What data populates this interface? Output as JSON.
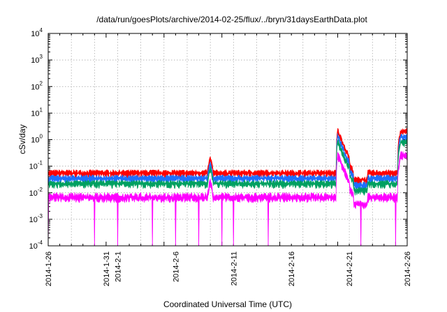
{
  "chart_data": {
    "type": "line",
    "title": "/data/run/goesPlots/archive/2014-02-25/flux/../bryn/31daysEarthData.plot",
    "xlabel": "Coordinated Universal Time (UTC)",
    "ylabel": "cSv/day",
    "yscale": "log",
    "ylim": [
      0.0001,
      10000
    ],
    "xlim": [
      "2014-01-26",
      "2014-02-26"
    ],
    "grid": true,
    "x_ticks": [
      "2014-1-26",
      "2014-1-31",
      "2014-2-1",
      "2014-2-6",
      "2014-2-11",
      "2014-2-16",
      "2014-2-21",
      "2014-2-26"
    ],
    "y_ticks": [
      {
        "base": "10",
        "exp": "-4"
      },
      {
        "base": "10",
        "exp": "-3"
      },
      {
        "base": "10",
        "exp": "-2"
      },
      {
        "base": "10",
        "exp": "-1"
      },
      {
        "base": "10",
        "exp": "0"
      },
      {
        "base": "10",
        "exp": "1"
      },
      {
        "base": "10",
        "exp": "2"
      },
      {
        "base": "10",
        "exp": "3"
      },
      {
        "base": "10",
        "exp": "4"
      }
    ],
    "series": [
      {
        "color": "#ff0000",
        "baseline": 0.055
      },
      {
        "color": "#1e6fff",
        "baseline": 0.035
      },
      {
        "color": "#00a060",
        "baseline": 0.022
      },
      {
        "color": "#ff00ff",
        "baseline": 0.0065
      }
    ],
    "events": [
      {
        "day": "2014-02-09",
        "peak": 0.19
      },
      {
        "day": "2014-02-20",
        "peak": 2.2
      },
      {
        "day": "2014-02-26",
        "peak": 2.0
      }
    ],
    "magenta_dropouts": [
      "2014-01-26",
      "2014-01-30",
      "2014-02-01",
      "2014-02-04",
      "2014-02-06",
      "2014-02-08",
      "2014-02-09",
      "2014-02-10",
      "2014-02-11",
      "2014-02-14",
      "2014-02-20",
      "2014-02-22",
      "2014-02-25"
    ]
  }
}
